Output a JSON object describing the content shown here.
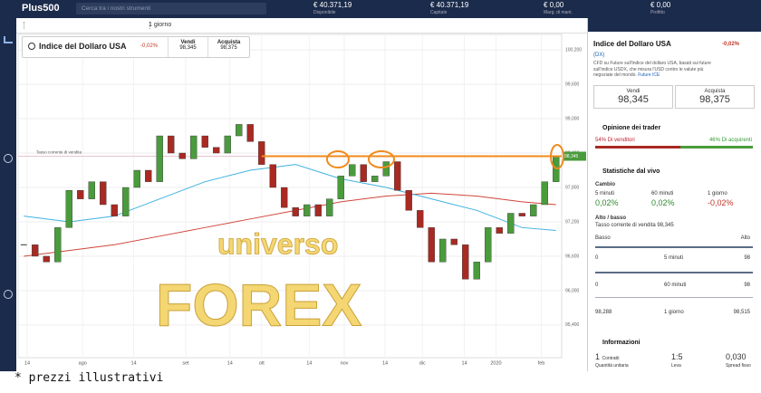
{
  "topbar": {
    "logo": "Plus500",
    "search": "Cerca tra i nostri strumenti",
    "stats": [
      {
        "value": "€ 40.371,19",
        "label": "Disponibile"
      },
      {
        "value": "€ 40.371,19",
        "label": "Capitale"
      },
      {
        "value": "€ 0,00",
        "label": "Marg. di mant."
      },
      {
        "value": "€ 0,00",
        "label": "Profitto"
      }
    ]
  },
  "toolbar": {
    "period": "1 giorno"
  },
  "instrument_card": {
    "name": "Indice del Dollaro USA",
    "change": "-0,02%",
    "sell_label": "Vendi",
    "sell": "98,345",
    "buy_label": "Acquista",
    "buy": "98,375"
  },
  "chart": {
    "type": "candlestick",
    "close": [
      96.8,
      96.6,
      96.5,
      97.1,
      97.75,
      97.6,
      97.9,
      97.5,
      97.3,
      97.8,
      98.1,
      97.9,
      98.7,
      98.4,
      98.3,
      98.7,
      98.5,
      98.4,
      98.7,
      98.9,
      98.6,
      98.2,
      97.8,
      97.45,
      97.3,
      97.5,
      97.3,
      97.6,
      98.0,
      98.2,
      97.9,
      98.0,
      98.25,
      97.75,
      97.4,
      97.1,
      96.5,
      96.9,
      96.8,
      96.2,
      96.5,
      97.1,
      97.0,
      97.35,
      97.3,
      97.5,
      97.9,
      98.345
    ],
    "ma_x": [
      0,
      4,
      8,
      12,
      16,
      20,
      24,
      28,
      32,
      36,
      40,
      44,
      47
    ],
    "ma_fast": [
      97.3,
      97.2,
      97.3,
      97.6,
      97.9,
      98.1,
      98.2,
      97.95,
      97.8,
      97.6,
      97.4,
      97.1,
      97.05
    ],
    "ma_slow": [
      96.6,
      96.7,
      96.8,
      96.95,
      97.1,
      97.25,
      97.4,
      97.55,
      97.65,
      97.7,
      97.65,
      97.55,
      97.5
    ],
    "xlim": [
      -0.5,
      47.5
    ],
    "ylim": [
      94.83,
      100.47
    ],
    "yticks": [
      {
        "value": 100.2,
        "label": "100,200"
      },
      {
        "value": 99.6,
        "label": "99,600"
      },
      {
        "value": 99.0,
        "label": "99,000"
      },
      {
        "value": 98.4,
        "label": "98,400"
      },
      {
        "value": 97.8,
        "label": "97,800"
      },
      {
        "value": 97.2,
        "label": "97,200"
      },
      {
        "value": 96.6,
        "label": "96,600"
      },
      {
        "value": 96.0,
        "label": "96,000"
      },
      {
        "value": 95.4,
        "label": "95,400"
      }
    ],
    "xticks": [
      {
        "value": 0.3,
        "label": "14"
      },
      {
        "value": 5.2,
        "label": "ago"
      },
      {
        "value": 9.7,
        "label": "14"
      },
      {
        "value": 14.3,
        "label": "set"
      },
      {
        "value": 18.2,
        "label": "14"
      },
      {
        "value": 21,
        "label": "ott"
      },
      {
        "value": 25.2,
        "label": "14"
      },
      {
        "value": 28.3,
        "label": "nov"
      },
      {
        "value": 31.9,
        "label": "14"
      },
      {
        "value": 35.2,
        "label": "dic"
      },
      {
        "value": 38.9,
        "label": "14"
      },
      {
        "value": 41.7,
        "label": "2020"
      },
      {
        "value": 45.7,
        "label": "feb"
      }
    ],
    "current": {
      "value": 98.345,
      "label": "98,345"
    },
    "current_line_label": "Tasso corrente di vendita"
  },
  "watermark": {
    "line1": "universo",
    "line2": "FOREX"
  },
  "footer": "* prezzi illustrativi",
  "panel": {
    "title": "Indice del Dollaro USA",
    "change": "-0,02%",
    "symbol": "(DX)",
    "description": "CFD su Future sull'indice del dollaro USA, basati sui future sull'indice USDX, che misura l'USD contro le valute più negoziate del mondo.",
    "link": "Future ICE",
    "sell_label": "Vendi",
    "sell": "98,345",
    "buy_label": "Acquista",
    "buy": "98,375",
    "sentiment": {
      "title": "Opinione dei trader",
      "sellers": {
        "value": 54,
        "label": "54% Di venditori"
      },
      "buyers": {
        "value": 46,
        "label": "46% Di acquirenti"
      }
    },
    "live": {
      "title": "Statistiche dal vivo",
      "change_title": "Cambio",
      "changes": [
        {
          "period": "5 minuti",
          "value": "0,02%"
        },
        {
          "period": "60 minuti",
          "value": "0,02%"
        },
        {
          "period": "1 giorno",
          "value": "-0,02%"
        }
      ],
      "highlow_title": "Alto / basso",
      "current": "Tasso corrente di vendita 98,345",
      "low": "Basso",
      "high": "Alto",
      "ranges": [
        {
          "min": "0",
          "period": "5 minuti",
          "max": "98"
        },
        {
          "min": "0",
          "period": "60 minuti",
          "max": "98"
        },
        {
          "min": "98,288",
          "period": "1 giorno",
          "max": "98,515"
        }
      ]
    },
    "info": {
      "title": "Informazioni",
      "items": [
        {
          "value": "1",
          "label": "Contratti",
          "sub": "Quantità unitaria"
        },
        {
          "value": "1:5",
          "label": "Leva"
        },
        {
          "value": "0,030",
          "label": "Spread fisso"
        }
      ]
    }
  }
}
